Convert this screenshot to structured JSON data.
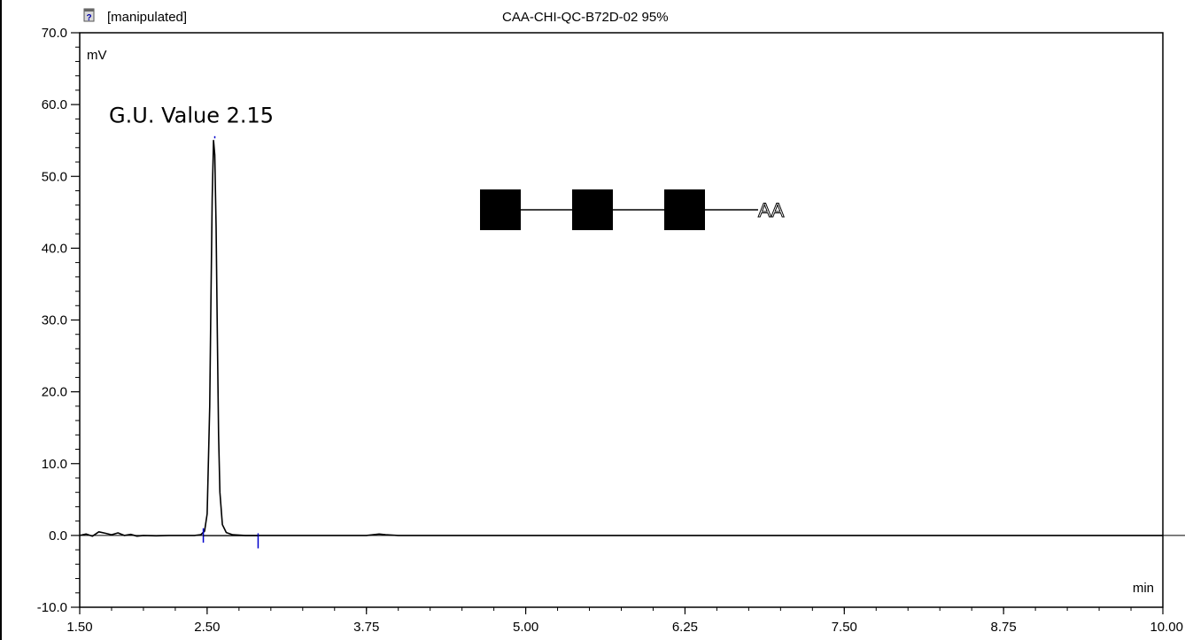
{
  "header": {
    "status_label": "[manipulated]",
    "status_icon": "question-doc-icon",
    "sample_title": "CAA-CHI-QC-B72D-02 95%"
  },
  "chart_data": {
    "type": "line",
    "title": "CAA-CHI-QC-B72D-02 95%",
    "xlabel": "min",
    "ylabel": "mV",
    "xlim": [
      1.5,
      10.0
    ],
    "ylim": [
      -10.0,
      70.0
    ],
    "x_ticks": [
      "1.50",
      "2.50",
      "3.75",
      "5.00",
      "6.25",
      "7.50",
      "8.75",
      "10.00"
    ],
    "x_tick_values": [
      1.5,
      2.5,
      3.75,
      5.0,
      6.25,
      7.5,
      8.75,
      10.0
    ],
    "y_ticks": [
      "-10.0",
      "0.0",
      "10.0",
      "20.0",
      "30.0",
      "40.0",
      "50.0",
      "60.0",
      "70.0"
    ],
    "y_tick_values": [
      -10,
      0,
      10,
      20,
      30,
      40,
      50,
      60,
      70
    ],
    "grid": false,
    "series": [
      {
        "color": "#000000",
        "x": [
          1.5,
          1.55,
          1.6,
          1.65,
          1.7,
          1.75,
          1.8,
          1.85,
          1.9,
          1.95,
          2.0,
          2.1,
          2.2,
          2.3,
          2.4,
          2.45,
          2.48,
          2.5,
          2.52,
          2.53,
          2.54,
          2.55,
          2.56,
          2.57,
          2.58,
          2.59,
          2.6,
          2.62,
          2.65,
          2.7,
          2.8,
          2.9,
          3.0,
          3.25,
          3.5,
          3.75,
          3.85,
          3.9,
          4.0,
          5.0,
          6.25,
          7.5,
          8.75,
          10.0
        ],
        "y": [
          0.0,
          0.2,
          -0.1,
          0.5,
          0.3,
          0.1,
          0.35,
          0.0,
          0.15,
          -0.1,
          0.0,
          -0.05,
          0.0,
          0.0,
          0.0,
          0.1,
          0.6,
          3.0,
          18.0,
          33.0,
          47.0,
          55.0,
          53.0,
          43.0,
          28.0,
          14.0,
          6.0,
          1.5,
          0.4,
          0.1,
          0.0,
          0.0,
          0.0,
          0.0,
          0.0,
          0.0,
          0.2,
          0.1,
          0.0,
          0.0,
          0.0,
          0.0,
          0.0,
          0.0
        ]
      }
    ],
    "annotations": [
      {
        "text": "G.U. Value 2.15",
        "x": 2.55,
        "y": 55
      }
    ],
    "integration_marks": [
      {
        "x": 2.47,
        "color": "#0000cc"
      },
      {
        "x": 2.56,
        "color": "#0000cc"
      },
      {
        "x": 2.9,
        "color": "#0000cc"
      }
    ],
    "glycan": {
      "units": 3,
      "terminal_label": "AA"
    }
  }
}
